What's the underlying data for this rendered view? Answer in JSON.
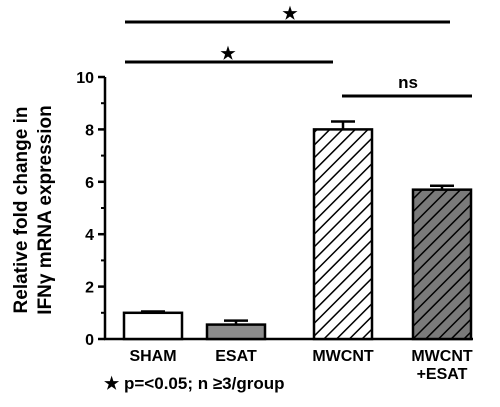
{
  "chart_data": {
    "type": "bar",
    "categories": [
      {
        "lines": [
          "SHAM"
        ],
        "fill": "white"
      },
      {
        "lines": [
          "ESAT"
        ],
        "fill": "gray"
      },
      {
        "lines": [
          "MWCNT"
        ],
        "fill": "hatch-white"
      },
      {
        "lines": [
          "MWCNT",
          "+ESAT"
        ],
        "fill": "hatch-gray"
      }
    ],
    "values": [
      1.0,
      0.55,
      8.0,
      5.7
    ],
    "errors": [
      0.05,
      0.15,
      0.3,
      0.15
    ],
    "ylabel_lines": [
      "Relative fold change in",
      "IFNγ mRNA expression"
    ],
    "ylim": [
      0,
      10
    ],
    "yticks": [
      0,
      2,
      4,
      6,
      8,
      10
    ],
    "colors": {
      "gray": "#8c8c8c",
      "dark_gray": "#6e6e6e",
      "stroke": "#000000"
    },
    "significance": [
      {
        "from": 0,
        "to": 3,
        "label": "★",
        "level": 2
      },
      {
        "from": 0,
        "to": 2,
        "label": "★",
        "level": 1
      },
      {
        "from": 2,
        "to": 3,
        "label": "ns",
        "level": 0
      }
    ],
    "footnote": "p=<0.05; n ≥3/group",
    "footnote_symbol": "★"
  }
}
